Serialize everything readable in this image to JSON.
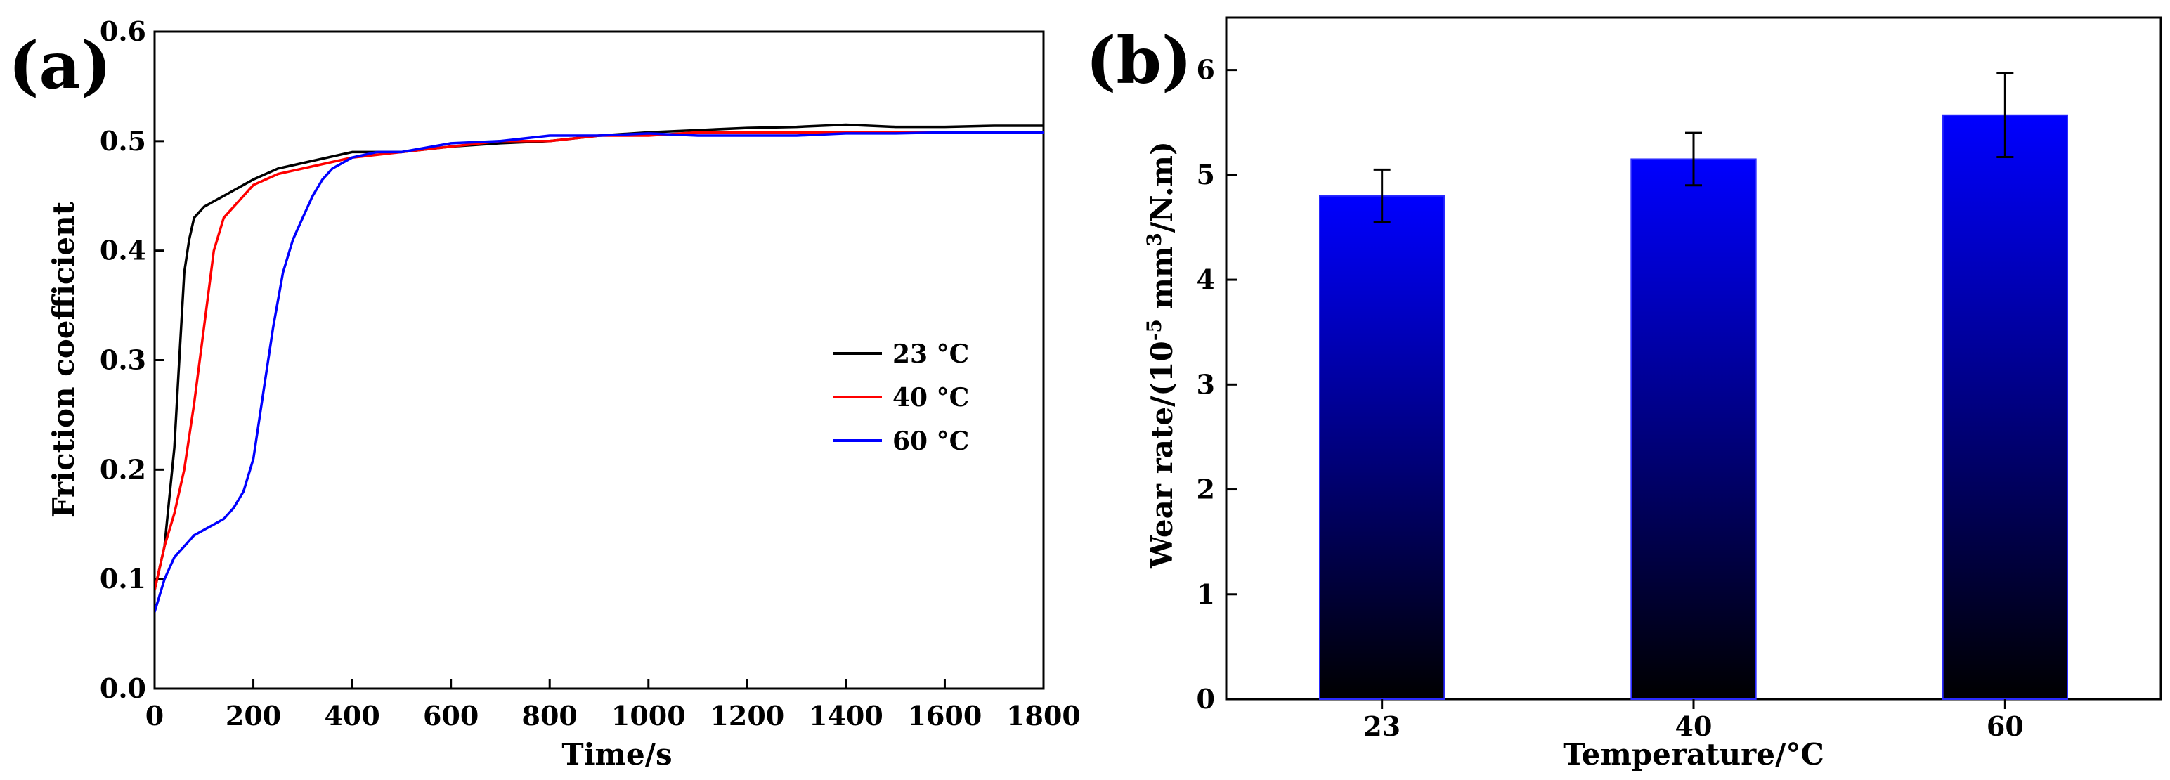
{
  "chart_data": [
    {
      "panel": "(a)",
      "type": "line",
      "xlabel": "Time/s",
      "ylabel": "Friction coefficient",
      "xlim": [
        0,
        1800
      ],
      "ylim": [
        0.0,
        0.6
      ],
      "xticks": [
        "0",
        "200",
        "400",
        "600",
        "800",
        "1000",
        "1200",
        "1400",
        "1600",
        "1800"
      ],
      "yticks": [
        "0.0",
        "0.1",
        "0.2",
        "0.3",
        "0.4",
        "0.5",
        "0.6"
      ],
      "legend_position": "center-right",
      "series": [
        {
          "name": "23 °C",
          "color": "#000000",
          "x": [
            0,
            20,
            40,
            50,
            60,
            70,
            80,
            90,
            100,
            120,
            140,
            160,
            180,
            200,
            250,
            300,
            350,
            400,
            500,
            600,
            700,
            800,
            900,
            1000,
            1100,
            1200,
            1300,
            1400,
            1500,
            1600,
            1700,
            1800
          ],
          "y": [
            0.09,
            0.13,
            0.22,
            0.3,
            0.38,
            0.41,
            0.43,
            0.435,
            0.44,
            0.445,
            0.45,
            0.455,
            0.46,
            0.465,
            0.475,
            0.48,
            0.485,
            0.49,
            0.49,
            0.495,
            0.498,
            0.5,
            0.505,
            0.508,
            0.51,
            0.512,
            0.513,
            0.515,
            0.513,
            0.513,
            0.514,
            0.514
          ]
        },
        {
          "name": "40 °C",
          "color": "#ff0000",
          "x": [
            0,
            20,
            40,
            60,
            80,
            100,
            120,
            140,
            160,
            180,
            200,
            250,
            300,
            350,
            400,
            500,
            600,
            700,
            800,
            900,
            1000,
            1100,
            1200,
            1300,
            1400,
            1500,
            1600,
            1700,
            1800
          ],
          "y": [
            0.09,
            0.13,
            0.16,
            0.2,
            0.26,
            0.33,
            0.4,
            0.43,
            0.44,
            0.45,
            0.46,
            0.47,
            0.475,
            0.48,
            0.485,
            0.49,
            0.495,
            0.5,
            0.5,
            0.505,
            0.505,
            0.508,
            0.508,
            0.508,
            0.508,
            0.508,
            0.508,
            0.508,
            0.508
          ]
        },
        {
          "name": "60 °C",
          "color": "#0000ff",
          "x": [
            0,
            20,
            40,
            60,
            80,
            100,
            120,
            140,
            160,
            180,
            200,
            220,
            240,
            260,
            280,
            300,
            320,
            340,
            360,
            380,
            400,
            450,
            500,
            600,
            700,
            800,
            900,
            1000,
            1100,
            1200,
            1300,
            1400,
            1500,
            1600,
            1700,
            1800
          ],
          "y": [
            0.07,
            0.1,
            0.12,
            0.13,
            0.14,
            0.145,
            0.15,
            0.155,
            0.165,
            0.18,
            0.21,
            0.27,
            0.33,
            0.38,
            0.41,
            0.43,
            0.45,
            0.465,
            0.475,
            0.48,
            0.485,
            0.49,
            0.49,
            0.498,
            0.5,
            0.505,
            0.505,
            0.507,
            0.505,
            0.505,
            0.505,
            0.507,
            0.507,
            0.508,
            0.508,
            0.508
          ]
        }
      ]
    },
    {
      "panel": "(b)",
      "type": "bar",
      "xlabel": "Temperature/°C",
      "ylabel_parts": [
        "Wear rate/(10",
        "-5",
        " mm",
        "3",
        "/N.m)"
      ],
      "ylim": [
        0,
        6.5
      ],
      "yticks": [
        "0",
        "1",
        "2",
        "3",
        "4",
        "5",
        "6"
      ],
      "categories": [
        "23",
        "40",
        "60"
      ],
      "values": [
        4.8,
        5.15,
        5.57
      ],
      "errors": [
        0.25,
        0.25,
        0.4
      ],
      "bar_color_top": "#0000ff",
      "bar_color_bottom": "#000000"
    }
  ]
}
